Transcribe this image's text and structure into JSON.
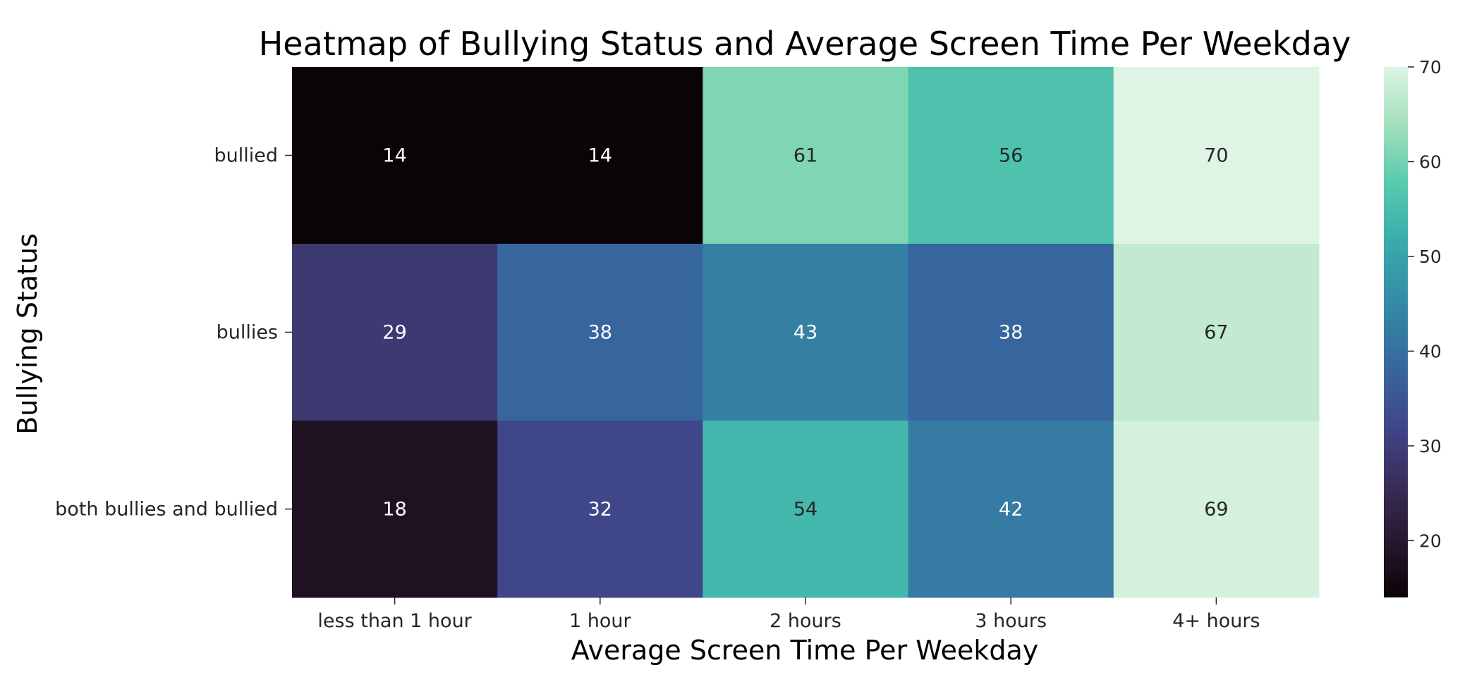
{
  "chart_data": {
    "type": "heatmap",
    "title": "Heatmap of Bullying Status and Average Screen Time Per Weekday",
    "xlabel": "Average Screen Time Per Weekday",
    "ylabel": "Bullying Status",
    "x_categories": [
      "less than 1 hour",
      "1 hour",
      "2 hours",
      "3 hours",
      "4+ hours"
    ],
    "y_categories": [
      "bullied",
      "bullies",
      "both bullies and bullied"
    ],
    "values": [
      [
        14,
        14,
        61,
        56,
        70
      ],
      [
        29,
        38,
        43,
        38,
        67
      ],
      [
        18,
        32,
        54,
        42,
        69
      ]
    ],
    "colorbar": {
      "min": 14,
      "max": 70,
      "ticks": [
        20,
        30,
        40,
        50,
        60,
        70
      ],
      "colormap": "mako",
      "stops": [
        "#0b0405",
        "#28192f",
        "#3b2f5e",
        "#40498e",
        "#366a9f",
        "#348ba6",
        "#38aaac",
        "#55caad",
        "#a1dfb9",
        "#def5e5"
      ]
    }
  }
}
